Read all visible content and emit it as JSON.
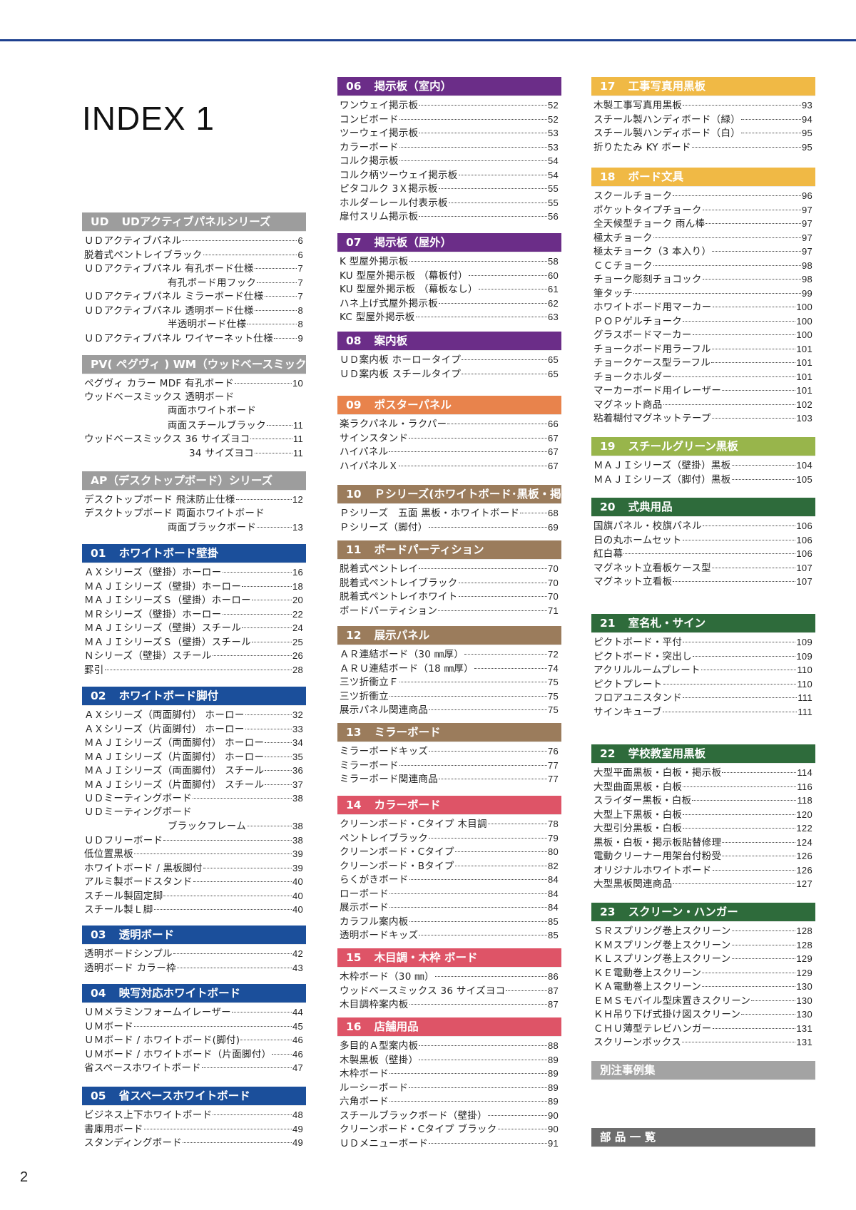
{
  "page": {
    "title": "INDEX 1",
    "page_number": "2",
    "accent_line_color": "#1d3f8f"
  },
  "columns": [
    [
      {
        "num": "UD",
        "title": "UDアクティブパネルシリーズ",
        "color": "#9d9d9d",
        "items": [
          {
            "t": "ＵＤアクティブパネル",
            "p": "6"
          },
          {
            "t": "脱着式ペントレイブラック",
            "p": "6"
          },
          {
            "t": "ＵＤアクティブパネル 有孔ボード仕様",
            "p": "7"
          },
          {
            "t": "有孔ボード用フック",
            "p": "7",
            "level": 2
          },
          {
            "t": "ＵＤアクティブパネル ミラーボード仕様",
            "p": "7"
          },
          {
            "t": "ＵＤアクティブパネル 透明ボード仕様",
            "p": "8"
          },
          {
            "t": "半透明ボード仕様",
            "p": "8",
            "level": 2
          },
          {
            "t": "ＵＤアクティブパネル ワイヤーネット仕様",
            "p": "9"
          }
        ]
      },
      {
        "num": "",
        "title": "PV( ペグヴィ ) WM（ウッドベースミックス）シリーズ",
        "color": "#9d9d9d",
        "items": [
          {
            "t": "ペグヴィ カラー MDF 有孔ボード",
            "p": "10"
          },
          {
            "t": "ウッドベースミックス 透明ボード",
            "p": ""
          },
          {
            "t": "両面ホワイトボード",
            "p": "",
            "level": 2
          },
          {
            "t": "両面スチールブラック",
            "p": "11",
            "level": 2
          },
          {
            "t": "ウッドベースミックス 36 サイズヨコ",
            "p": "11"
          },
          {
            "t": "34 サイズヨコ",
            "p": "11",
            "level": 3
          }
        ]
      },
      {
        "num": "",
        "title": "AP（デスクトップボード）シリーズ",
        "color": "#9d9d9d",
        "items": [
          {
            "t": "デスクトップボード 飛沫防止仕様",
            "p": "12"
          },
          {
            "t": "デスクトップボード 両面ホワイトボード",
            "p": ""
          },
          {
            "t": "両面ブラックボード",
            "p": "13",
            "level": 2
          }
        ]
      },
      {
        "num": "01",
        "title": "ホワイトボード壁掛",
        "color": "#1b4f9b",
        "items": [
          {
            "t": "ＡＸシリーズ（壁掛）ホーロー",
            "p": "16"
          },
          {
            "t": "ＭＡＪＩシリーズ（壁掛）ホーロー",
            "p": "18"
          },
          {
            "t": "ＭＡＪＩシリーズＳ（壁掛）ホーロー",
            "p": "20"
          },
          {
            "t": "ＭＲシリーズ（壁掛）ホーロー",
            "p": "22"
          },
          {
            "t": "ＭＡＪＩシリーズ（壁掛）スチール",
            "p": "24"
          },
          {
            "t": "ＭＡＪＩシリーズＳ（壁掛）スチール",
            "p": "25"
          },
          {
            "t": "Ｎシリーズ（壁掛）スチール",
            "p": "26"
          },
          {
            "t": "罫引",
            "p": "28"
          }
        ]
      },
      {
        "num": "02",
        "title": "ホワイトボード脚付",
        "color": "#1b4f9b",
        "items": [
          {
            "t": "ＡＸシリーズ（両面脚付） ホーロー",
            "p": "32"
          },
          {
            "t": "ＡＸシリーズ（片面脚付） ホーロー",
            "p": "33"
          },
          {
            "t": "ＭＡＪＩシリーズ（両面脚付） ホーロー",
            "p": "34"
          },
          {
            "t": "ＭＡＪＩシリーズ（片面脚付） ホーロー",
            "p": "35"
          },
          {
            "t": "ＭＡＪＩシリーズ（両面脚付） スチール",
            "p": "36"
          },
          {
            "t": "ＭＡＪＩシリーズ（片面脚付） スチール",
            "p": "37"
          },
          {
            "t": "ＵＤミーティングボード",
            "p": "38"
          },
          {
            "t": "ＵＤミーティングボード",
            "p": ""
          },
          {
            "t": "ブラックフレーム",
            "p": "38",
            "level": 2
          },
          {
            "t": "ＵＤフリーボード",
            "p": "38"
          },
          {
            "t": "低位置黒板",
            "p": "39"
          },
          {
            "t": "ホワイトボード / 黒板脚付",
            "p": "39"
          },
          {
            "t": "アルミ製ボードスタンド",
            "p": "40"
          },
          {
            "t": "スチール製固定脚",
            "p": "40"
          },
          {
            "t": "スチール製Ｌ脚",
            "p": "40"
          }
        ]
      },
      {
        "num": "03",
        "title": "透明ボード",
        "color": "#1b4f9b",
        "items": [
          {
            "t": "透明ボードシンプル",
            "p": "42"
          },
          {
            "t": "透明ボード カラー枠",
            "p": "43"
          }
        ]
      },
      {
        "num": "04",
        "title": "映写対応ホワイトボード",
        "color": "#1b4f9b",
        "items": [
          {
            "t": "ＵＭメラミンフォームイレーザー",
            "p": "44"
          },
          {
            "t": "ＵＭボード",
            "p": "45"
          },
          {
            "t": "ＵＭボード / ホワイトボード(脚付)",
            "p": "46"
          },
          {
            "t": "ＵＭボード / ホワイトボード（片面脚付）",
            "p": "46"
          },
          {
            "t": "省スペースホワイトボード",
            "p": "47"
          }
        ]
      },
      {
        "num": "05",
        "title": "省スペースホワイトボード",
        "color": "#1b4f9b",
        "items": [
          {
            "t": "ビジネス上下ホワイトボード",
            "p": "48"
          },
          {
            "t": "書庫用ボード",
            "p": "49"
          },
          {
            "t": "スタンディングボード",
            "p": "49"
          }
        ]
      }
    ],
    [
      {
        "num": "06",
        "title": "掲示板（室内）",
        "color": "#6b2d88",
        "items": [
          {
            "t": "ワンウェイ掲示板",
            "p": "52"
          },
          {
            "t": "コンビボード",
            "p": "52"
          },
          {
            "t": "ツーウェイ掲示板",
            "p": "53"
          },
          {
            "t": "カラーボード",
            "p": "53"
          },
          {
            "t": "コルク掲示板",
            "p": "54"
          },
          {
            "t": "コルク柄ツーウェイ掲示板",
            "p": "54"
          },
          {
            "t": "ピタコルク 3Ｘ掲示板",
            "p": "55"
          },
          {
            "t": "ホルダーレール付表示板",
            "p": "55"
          },
          {
            "t": "扉付スリム掲示板",
            "p": "56"
          }
        ]
      },
      {
        "num": "07",
        "title": "掲示板（屋外）",
        "color": "#6b2d88",
        "items": [
          {
            "t": "K 型屋外掲示板",
            "p": "58"
          },
          {
            "t": "KU 型屋外掲示板 （幕板付）",
            "p": "60"
          },
          {
            "t": "KU 型屋外掲示板 （幕板なし）",
            "p": "61"
          },
          {
            "t": "ハネ上げ式屋外掲示板",
            "p": "62"
          },
          {
            "t": "KC 型屋外掲示板",
            "p": "63"
          }
        ]
      },
      {
        "num": "08",
        "title": "案内板",
        "color": "#6b2d88",
        "items": [
          {
            "t": "ＵＤ案内板 ホーロータイプ",
            "p": "65"
          },
          {
            "t": "ＵＤ案内板 スチールタイプ",
            "p": "65"
          }
        ]
      },
      {
        "num": "09",
        "title": "ポスターパネル",
        "color": "#e8834c",
        "items": [
          {
            "t": "楽ラクパネル・ラクパー",
            "p": "66"
          },
          {
            "t": "サインスタンド",
            "p": "67"
          },
          {
            "t": "ハイパネル",
            "p": "67"
          },
          {
            "t": "ハイパネルＸ",
            "p": "67"
          }
        ]
      },
      {
        "num": "10",
        "title": "Ｐシリーズ(ホワイトボード･黒板・掲示板)",
        "color": "#9b7c5c",
        "items": [
          {
            "t": "Ｐシリーズ　五面 黒板・ホワイトボード",
            "p": "68"
          },
          {
            "t": "Ｐシリーズ（脚付）",
            "p": "69"
          }
        ]
      },
      {
        "num": "11",
        "title": "ボードパーティション",
        "color": "#9b7c5c",
        "items": [
          {
            "t": "脱着式ペントレイ",
            "p": "70"
          },
          {
            "t": "脱着式ペントレイブラック",
            "p": "70"
          },
          {
            "t": "脱着式ペントレイホワイト",
            "p": "70"
          },
          {
            "t": "ボードパーティション",
            "p": "71"
          }
        ]
      },
      {
        "num": "12",
        "title": "展示パネル",
        "color": "#9b7c5c",
        "items": [
          {
            "t": "ＡＲ連結ボード（30 ㎜厚）",
            "p": "72"
          },
          {
            "t": "ＡＲＵ連結ボード（18 ㎜厚）",
            "p": "74"
          },
          {
            "t": "三ツ折衝立Ｆ",
            "p": "75"
          },
          {
            "t": "三ツ折衝立",
            "p": "75"
          },
          {
            "t": "展示パネル関連商品",
            "p": "75"
          }
        ]
      },
      {
        "num": "13",
        "title": "ミラーボード",
        "color": "#9b7c5c",
        "items": [
          {
            "t": "ミラーボードキッズ",
            "p": "76"
          },
          {
            "t": "ミラーボード",
            "p": "77"
          },
          {
            "t": "ミラーボード関連商品",
            "p": "77"
          }
        ]
      },
      {
        "num": "14",
        "title": "カラーボード",
        "color": "#de5467",
        "items": [
          {
            "t": "クリーンボード・Cタイプ 木目調",
            "p": "78"
          },
          {
            "t": "ペントレイブラック",
            "p": "79"
          },
          {
            "t": "クリーンボード・Cタイプ",
            "p": "80"
          },
          {
            "t": "クリーンボード・Bタイプ",
            "p": "82"
          },
          {
            "t": "らくがきボード",
            "p": "84"
          },
          {
            "t": "ローボード",
            "p": "84"
          },
          {
            "t": "展示ボード",
            "p": "84"
          },
          {
            "t": "カラフル案内板",
            "p": "85"
          },
          {
            "t": "透明ボードキッズ",
            "p": "85"
          }
        ]
      },
      {
        "num": "15",
        "title": "木目調・木枠 ボード",
        "color": "#de5467",
        "items": [
          {
            "t": "木枠ボード（30 ㎜）",
            "p": "86"
          },
          {
            "t": "ウッドベースミックス 36 サイズヨコ",
            "p": "87"
          },
          {
            "t": "木目調枠案内板",
            "p": "87"
          }
        ]
      },
      {
        "num": "16",
        "title": "店舗用品",
        "color": "#de5467",
        "items": [
          {
            "t": "多目的Ａ型案内板",
            "p": "88"
          },
          {
            "t": "木製黒板（壁掛）",
            "p": "89"
          },
          {
            "t": "木枠ボード",
            "p": "89"
          },
          {
            "t": "ルーシーボード",
            "p": "89"
          },
          {
            "t": "六角ボード",
            "p": "89"
          },
          {
            "t": "スチールブラックボード（壁掛）",
            "p": "90"
          },
          {
            "t": "クリーンボード・Cタイプ ブラック",
            "p": "90"
          },
          {
            "t": "ＵＤメニューボード",
            "p": "91"
          }
        ]
      }
    ],
    [
      {
        "num": "17",
        "title": "工事写真用黒板",
        "color": "#f0b945",
        "items": [
          {
            "t": "木製工事写真用黒板",
            "p": "93"
          },
          {
            "t": "スチール製ハンディボード（緑）",
            "p": "94"
          },
          {
            "t": "スチール製ハンディボード（白）",
            "p": "95"
          },
          {
            "t": "折りたたみ KY ボード",
            "p": "95"
          }
        ]
      },
      {
        "num": "18",
        "title": "ボード文具",
        "color": "#f0b945",
        "items": [
          {
            "t": "スクールチョーク",
            "p": "96"
          },
          {
            "t": "ポケットタイプチョーク",
            "p": "97"
          },
          {
            "t": "全天候型チョーク 雨ん棒",
            "p": "97"
          },
          {
            "t": "極太チョーク",
            "p": "97"
          },
          {
            "t": "極太チョーク（3 本入り）",
            "p": "97"
          },
          {
            "t": "ＣＣチョーク",
            "p": "98"
          },
          {
            "t": "チョーク彫刻チョコック",
            "p": "98"
          },
          {
            "t": "筆タッチ",
            "p": "99"
          },
          {
            "t": "ホワイトボード用マーカー",
            "p": "100"
          },
          {
            "t": "ＰＯＰゲルチョーク",
            "p": "100"
          },
          {
            "t": "グラスボードマーカー",
            "p": "100"
          },
          {
            "t": "チョークボード用ラーフル",
            "p": "101"
          },
          {
            "t": "チョークケース型ラーフル",
            "p": "101"
          },
          {
            "t": "チョークホルダー",
            "p": "101"
          },
          {
            "t": "マーカーボード用イレーザー",
            "p": "101"
          },
          {
            "t": "マグネット商品",
            "p": "102"
          },
          {
            "t": "粘着糊付マグネットテープ",
            "p": "103"
          }
        ]
      },
      {
        "num": "19",
        "title": "スチールグリーン黒板",
        "color": "#98b54b",
        "items": [
          {
            "t": "ＭＡＪＩシリーズ（壁掛）黒板",
            "p": "104"
          },
          {
            "t": "ＭＡＪＩシリーズ（脚付）黒板",
            "p": "105"
          }
        ]
      },
      {
        "num": "20",
        "title": "式典用品",
        "color": "#2e6b3b",
        "items": [
          {
            "t": "国旗パネル・校旗パネル",
            "p": "106"
          },
          {
            "t": "日の丸ホームセット",
            "p": "106"
          },
          {
            "t": "紅白幕",
            "p": "106"
          },
          {
            "t": "マグネット立看板ケース型",
            "p": "107"
          },
          {
            "t": "マグネット立看板",
            "p": "107"
          }
        ]
      },
      {
        "num": "21",
        "title": "室名札・サイン",
        "color": "#2e6b3b",
        "items": [
          {
            "t": "ピクトボード・平付",
            "p": "109"
          },
          {
            "t": "ピクトボード・突出し",
            "p": "109"
          },
          {
            "t": "アクリルルームプレート",
            "p": "110"
          },
          {
            "t": "ピクトプレート",
            "p": "110"
          },
          {
            "t": "フロアユニスタンド",
            "p": "111"
          },
          {
            "t": "サインキューブ",
            "p": "111"
          }
        ]
      },
      {
        "num": "22",
        "title": "学校教室用黒板",
        "color": "#2e6b3b",
        "items": [
          {
            "t": "大型平面黒板・白板・掲示板",
            "p": "114"
          },
          {
            "t": "大型曲面黒板・白板",
            "p": "116"
          },
          {
            "t": "スライダー黒板・白板",
            "p": "118"
          },
          {
            "t": "大型上下黒板・白板",
            "p": "120"
          },
          {
            "t": "大型引分黒板・白板",
            "p": "122"
          },
          {
            "t": "黒板・白板・掲示板貼替修理",
            "p": "124"
          },
          {
            "t": "電動クリーナー用架台付粉受",
            "p": "126"
          },
          {
            "t": "オリジナルホワイトボード",
            "p": "126"
          },
          {
            "t": "大型黒板関連商品",
            "p": "127"
          }
        ]
      },
      {
        "num": "23",
        "title": "スクリーン・ハンガー",
        "color": "#2e6b3b",
        "items": [
          {
            "t": "ＳＲスプリング巻上スクリーン",
            "p": "128"
          },
          {
            "t": "ＫＭスプリング巻上スクリーン",
            "p": "128"
          },
          {
            "t": "ＫＬスプリング巻上スクリーン",
            "p": "129"
          },
          {
            "t": "ＫＥ電動巻上スクリーン",
            "p": "129"
          },
          {
            "t": "ＫＡ電動巻上スクリーン",
            "p": "130"
          },
          {
            "t": "ＥＭＳモバイル型床置きスクリーン",
            "p": "130"
          },
          {
            "t": "ＫＨ吊り下げ式掛け図スクリーン",
            "p": "130"
          },
          {
            "t": "ＣＨＵ薄型テレビハンガー",
            "p": "131"
          },
          {
            "t": "スクリーンボックス",
            "p": "131"
          }
        ]
      },
      {
        "num": "",
        "title": "別注事例集",
        "color": "#a3a3a3",
        "items": []
      },
      {
        "num": "",
        "title": "部 品 一 覧",
        "color": "#6d6d6d",
        "items": []
      }
    ]
  ]
}
